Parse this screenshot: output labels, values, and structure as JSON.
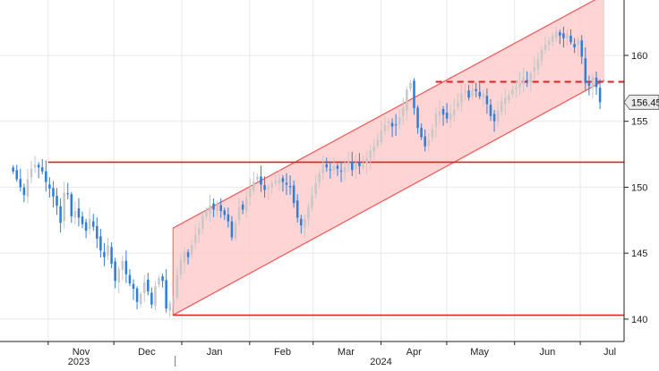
{
  "chart_data": {
    "type": "candlestick",
    "title": "",
    "xlabel": "",
    "ylabel": "",
    "ylim": [
      138.3,
      164.2
    ],
    "yticks": [
      140,
      145,
      150,
      155,
      160
    ],
    "grid": true,
    "legend": "none",
    "last_price": 156.45,
    "last_price_label": "156.45",
    "x_month_labels": [
      {
        "label": "Nov",
        "date": "2023-11-01"
      },
      {
        "label": "Dec",
        "date": "2023-12-01"
      },
      {
        "label": "Jan",
        "date": "2024-01-01"
      },
      {
        "label": "Feb",
        "date": "2024-02-01"
      },
      {
        "label": "Mar",
        "date": "2024-03-01"
      },
      {
        "label": "Apr",
        "date": "2024-04-01"
      },
      {
        "label": "May",
        "date": "2024-05-01"
      },
      {
        "label": "Jun",
        "date": "2024-06-01"
      },
      {
        "label": "Jul",
        "date": "2024-07-01"
      }
    ],
    "x_year_labels": [
      {
        "label": "2023",
        "date": "2023-11-15"
      },
      {
        "label": "2024",
        "date": "2024-04-01"
      }
    ],
    "year_separator_date": "2023-12-29",
    "series_closes": [
      151.2,
      150.6,
      150.0,
      149.4,
      150.6,
      151.4,
      151.7,
      151.5,
      151.2,
      150.4,
      149.9,
      149.3,
      148.6,
      147.3,
      149.6,
      149.5,
      147.8,
      148.2,
      147.7,
      147.2,
      146.7,
      147.6,
      147.0,
      146.1,
      145.2,
      144.7,
      145.6,
      144.2,
      142.9,
      143.8,
      144.4,
      143.4,
      142.7,
      142.3,
      141.3,
      141.9,
      142.8,
      142.1,
      141.1,
      142.5,
      143.1,
      142.9,
      140.8,
      141.2,
      141.5,
      143.3,
      144.5,
      145.1,
      144.7,
      145.6,
      146.4,
      146.9,
      147.8,
      148.2,
      148.6,
      148.3,
      148.7,
      148.2,
      147.9,
      147.4,
      146.2,
      147.3,
      148.5,
      148.3,
      149.2,
      149.9,
      150.4,
      150.8,
      150.2,
      149.8,
      150.0,
      150.3,
      150.5,
      150.6,
      150.4,
      150.2,
      150.0,
      148.8,
      147.7,
      147.1,
      147.6,
      148.5,
      149.4,
      150.3,
      151.0,
      151.7,
      151.5,
      151.3,
      151.6,
      151.4,
      151.2,
      151.5,
      151.9,
      151.3,
      151.8,
      151.6,
      151.7,
      152.2,
      152.8,
      153.1,
      153.6,
      154.3,
      154.7,
      155.0,
      154.6,
      154.7,
      155.3,
      156.0,
      157.4,
      157.9,
      156.0,
      154.5,
      153.8,
      153.1,
      153.6,
      154.4,
      155.6,
      155.8,
      155.5,
      155.2,
      155.6,
      155.9,
      156.4,
      157.1,
      157.3,
      156.8,
      157.4,
      157.3,
      156.9,
      157.1,
      156.3,
      155.4,
      155.0,
      155.8,
      156.5,
      156.8,
      157.0,
      157.4,
      157.6,
      157.9,
      158.3,
      158.1,
      158.6,
      159.1,
      159.7,
      160.4,
      160.8,
      161.1,
      161.5,
      161.8,
      161.5,
      161.3,
      161.6,
      161.0,
      160.6,
      161.2,
      159.9,
      157.9,
      157.7,
      158.3,
      157.6,
      156.45
    ],
    "channel": {
      "lower": [
        {
          "date": "2023-12-28",
          "value": 140.3
        },
        {
          "date": "2024-07-12",
          "value": 158.1
        }
      ],
      "upper": [
        {
          "date": "2023-12-28",
          "value": 146.9
        },
        {
          "date": "2024-07-12",
          "value": 164.6
        }
      ]
    },
    "horizontal_lines": [
      {
        "value": 151.9,
        "from": "2023-11-01",
        "style": "solid"
      },
      {
        "value": 140.3,
        "from": "2023-12-28",
        "style": "solid"
      },
      {
        "value": 158.0,
        "from": "2024-04-26",
        "style": "dashed"
      }
    ],
    "colors": {
      "candle_up": "#c8c8c8",
      "candle_down": "#2f7fd8",
      "channel_fill": "#ffcccc",
      "channel_line": "#f06060",
      "level_line": "#dd2222",
      "grid": "#e8e8e8",
      "axis": "#222222",
      "last_price_box": "#ebebeb"
    }
  }
}
